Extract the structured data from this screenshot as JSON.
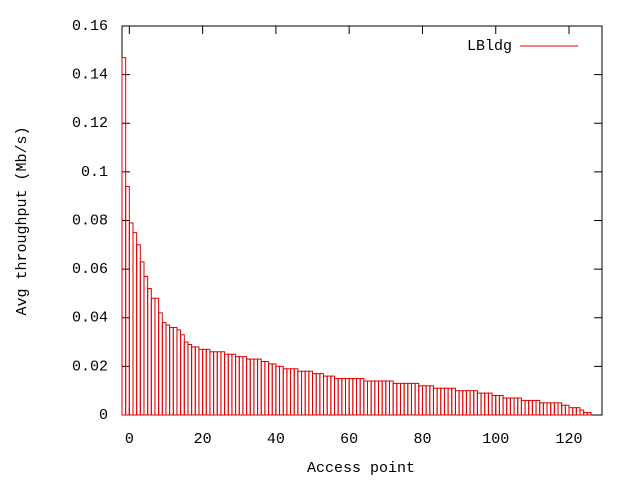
{
  "chart_data": {
    "type": "bar",
    "xlabel": "Access point",
    "ylabel": "Avg throughput (Mb/s)",
    "x": [
      -2,
      -1,
      0,
      1,
      2,
      3,
      4,
      5,
      6,
      7,
      8,
      9,
      10,
      11,
      12,
      13,
      14,
      15,
      16,
      17,
      18,
      19,
      20,
      21,
      22,
      23,
      24,
      25,
      26,
      27,
      28,
      29,
      30,
      31,
      32,
      33,
      34,
      35,
      36,
      37,
      38,
      39,
      40,
      41,
      42,
      43,
      44,
      45,
      46,
      47,
      48,
      49,
      50,
      51,
      52,
      53,
      54,
      55,
      56,
      57,
      58,
      59,
      60,
      61,
      62,
      63,
      64,
      65,
      66,
      67,
      68,
      69,
      70,
      71,
      72,
      73,
      74,
      75,
      76,
      77,
      78,
      79,
      80,
      81,
      82,
      83,
      84,
      85,
      86,
      87,
      88,
      89,
      90,
      91,
      92,
      93,
      94,
      95,
      96,
      97,
      98,
      99,
      100,
      101,
      102,
      103,
      104,
      105,
      106,
      107,
      108,
      109,
      110,
      111,
      112,
      113,
      114,
      115,
      116,
      117,
      118,
      119,
      120,
      121,
      122,
      123,
      124,
      125
    ],
    "series": [
      {
        "name": "LBldg",
        "color": "#dd0000",
        "values": [
          0.147,
          0.094,
          0.079,
          0.075,
          0.07,
          0.063,
          0.057,
          0.052,
          0.048,
          0.048,
          0.042,
          0.038,
          0.037,
          0.036,
          0.036,
          0.035,
          0.033,
          0.03,
          0.029,
          0.028,
          0.028,
          0.027,
          0.027,
          0.027,
          0.026,
          0.026,
          0.026,
          0.026,
          0.025,
          0.025,
          0.025,
          0.024,
          0.024,
          0.024,
          0.023,
          0.023,
          0.023,
          0.023,
          0.022,
          0.022,
          0.021,
          0.021,
          0.02,
          0.02,
          0.019,
          0.019,
          0.019,
          0.019,
          0.018,
          0.018,
          0.018,
          0.018,
          0.017,
          0.017,
          0.017,
          0.016,
          0.016,
          0.016,
          0.015,
          0.015,
          0.015,
          0.015,
          0.015,
          0.015,
          0.015,
          0.015,
          0.014,
          0.014,
          0.014,
          0.014,
          0.014,
          0.014,
          0.014,
          0.014,
          0.013,
          0.013,
          0.013,
          0.013,
          0.013,
          0.013,
          0.013,
          0.012,
          0.012,
          0.012,
          0.012,
          0.011,
          0.011,
          0.011,
          0.011,
          0.011,
          0.011,
          0.01,
          0.01,
          0.01,
          0.01,
          0.01,
          0.01,
          0.009,
          0.009,
          0.009,
          0.009,
          0.008,
          0.008,
          0.008,
          0.007,
          0.007,
          0.007,
          0.007,
          0.007,
          0.006,
          0.006,
          0.006,
          0.006,
          0.006,
          0.005,
          0.005,
          0.005,
          0.005,
          0.005,
          0.005,
          0.004,
          0.004,
          0.003,
          0.003,
          0.003,
          0.002,
          0.001,
          0.001
        ]
      }
    ],
    "xlim": [
      -2,
      129
    ],
    "xticks": [
      0,
      20,
      40,
      60,
      80,
      100,
      120
    ],
    "ylim": [
      0,
      0.16
    ],
    "yticks": [
      0,
      0.02,
      0.04,
      0.06,
      0.08,
      0.1,
      0.12,
      0.14,
      0.16
    ],
    "legend": "top-right",
    "grid": false
  }
}
